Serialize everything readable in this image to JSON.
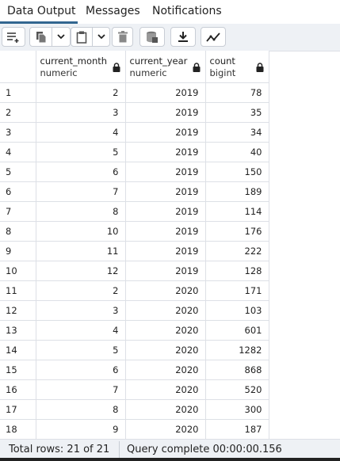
{
  "tabs": [
    {
      "label": "Data Output",
      "active": true
    },
    {
      "label": "Messages",
      "active": false
    },
    {
      "label": "Notifications",
      "active": false
    }
  ],
  "toolbar": {
    "icons": [
      "add-row-icon",
      "copy-icon",
      "dropdown-icon",
      "paste-icon",
      "dropdown-icon",
      "delete-icon",
      "save-data-icon",
      "download-icon",
      "graph-icon"
    ]
  },
  "columns": [
    {
      "name": "current_month",
      "type": "numeric"
    },
    {
      "name": "current_year",
      "type": "numeric"
    },
    {
      "name": "count",
      "type": "bigint"
    }
  ],
  "rows": [
    {
      "n": "1",
      "month": "2",
      "year": "2019",
      "count": "78"
    },
    {
      "n": "2",
      "month": "3",
      "year": "2019",
      "count": "35"
    },
    {
      "n": "3",
      "month": "4",
      "year": "2019",
      "count": "34"
    },
    {
      "n": "4",
      "month": "5",
      "year": "2019",
      "count": "40"
    },
    {
      "n": "5",
      "month": "6",
      "year": "2019",
      "count": "150"
    },
    {
      "n": "6",
      "month": "7",
      "year": "2019",
      "count": "189"
    },
    {
      "n": "7",
      "month": "8",
      "year": "2019",
      "count": "114"
    },
    {
      "n": "8",
      "month": "10",
      "year": "2019",
      "count": "176"
    },
    {
      "n": "9",
      "month": "11",
      "year": "2019",
      "count": "222"
    },
    {
      "n": "10",
      "month": "12",
      "year": "2019",
      "count": "128"
    },
    {
      "n": "11",
      "month": "2",
      "year": "2020",
      "count": "171"
    },
    {
      "n": "12",
      "month": "3",
      "year": "2020",
      "count": "103"
    },
    {
      "n": "13",
      "month": "4",
      "year": "2020",
      "count": "601"
    },
    {
      "n": "14",
      "month": "5",
      "year": "2020",
      "count": "1282"
    },
    {
      "n": "15",
      "month": "6",
      "year": "2020",
      "count": "868"
    },
    {
      "n": "16",
      "month": "7",
      "year": "2020",
      "count": "520"
    },
    {
      "n": "17",
      "month": "8",
      "year": "2020",
      "count": "300"
    },
    {
      "n": "18",
      "month": "9",
      "year": "2020",
      "count": "187"
    }
  ],
  "status": {
    "total_rows": "Total rows: 21 of 21",
    "query": "Query complete 00:00:00.156"
  },
  "colors": {
    "accent": "#326690",
    "toolbar_bg": "#eef1f5",
    "border": "#dde0e6"
  }
}
